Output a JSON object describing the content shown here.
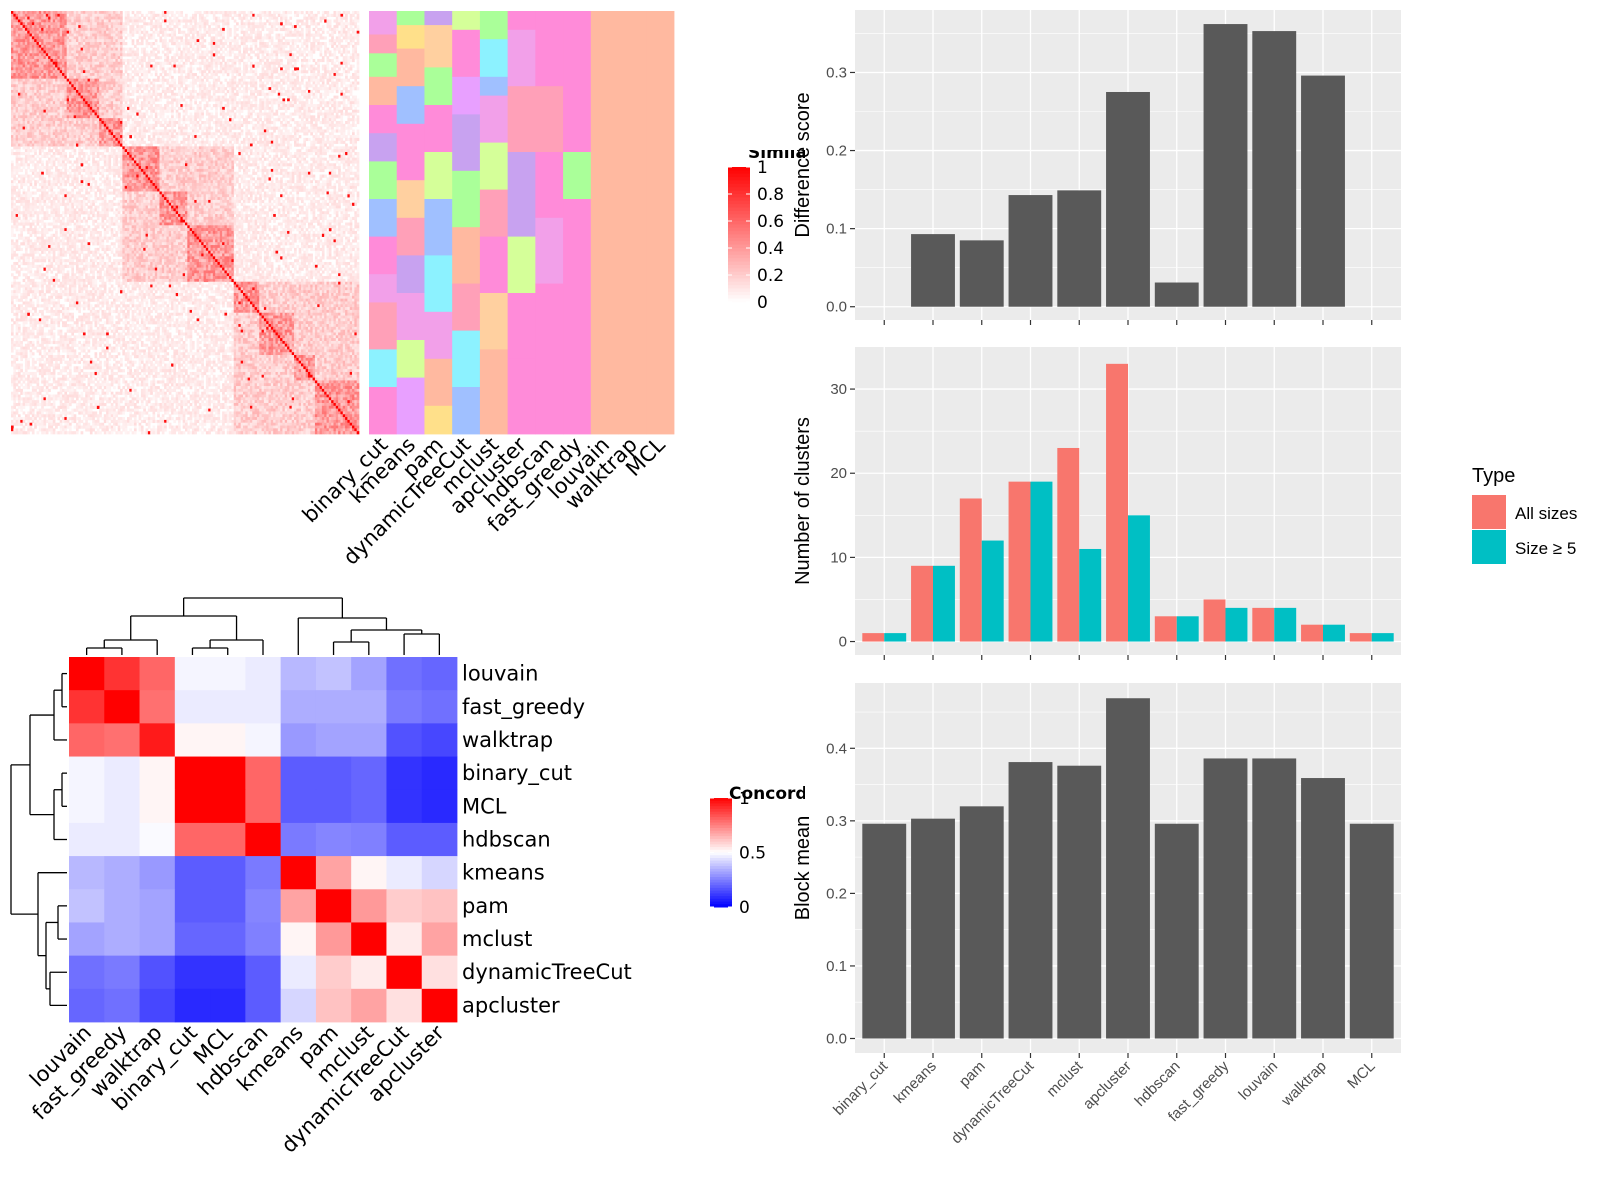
{
  "colors": {
    "bar": "#595959",
    "all_sizes": "#F8766D",
    "size_ge5": "#00BFC4",
    "panel_bg": "#EBEBEB",
    "grid": "#FFFFFF",
    "red": "#FF0000",
    "blue": "#0000FF",
    "white": "#FFFFFF"
  },
  "chart_data": [
    {
      "id": "similarity-heatmap",
      "type": "heatmap",
      "legend_title": "Similarity",
      "legend_ticks": [
        "0",
        "0.2",
        "0.4",
        "0.6",
        "0.8",
        "1"
      ],
      "n": 150
    },
    {
      "id": "cluster-assignments",
      "type": "heatmap",
      "columns": [
        "binary_cut",
        "kmeans",
        "pam",
        "dynamicTreeCut",
        "mclust",
        "apcluster",
        "hdbscan",
        "fast_greedy",
        "louvain",
        "walktrap",
        "MCL"
      ]
    },
    {
      "id": "concordance-heatmap",
      "type": "heatmap",
      "legend_title": "Concordance",
      "legend_ticks": [
        "0",
        "0.5",
        "1"
      ],
      "rows": [
        "louvain",
        "fast_greedy",
        "walktrap",
        "binary_cut",
        "MCL",
        "hdbscan",
        "kmeans",
        "pam",
        "mclust",
        "dynamicTreeCut",
        "apcluster"
      ],
      "columns": [
        "louvain",
        "fast_greedy",
        "walktrap",
        "binary_cut",
        "MCL",
        "hdbscan",
        "kmeans",
        "pam",
        "mclust",
        "dynamicTreeCut",
        "apcluster"
      ],
      "values": [
        [
          1.0,
          0.9,
          0.8,
          0.48,
          0.48,
          0.46,
          0.36,
          0.38,
          0.32,
          0.22,
          0.2
        ],
        [
          0.9,
          1.0,
          0.78,
          0.46,
          0.46,
          0.46,
          0.34,
          0.34,
          0.34,
          0.24,
          0.22
        ],
        [
          0.8,
          0.78,
          0.95,
          0.52,
          0.52,
          0.48,
          0.3,
          0.32,
          0.32,
          0.16,
          0.14
        ],
        [
          0.48,
          0.46,
          0.52,
          1.0,
          1.0,
          0.8,
          0.18,
          0.18,
          0.2,
          0.1,
          0.08
        ],
        [
          0.48,
          0.46,
          0.52,
          1.0,
          1.0,
          0.8,
          0.18,
          0.18,
          0.2,
          0.1,
          0.08
        ],
        [
          0.46,
          0.46,
          0.49,
          0.8,
          0.8,
          1.0,
          0.24,
          0.26,
          0.25,
          0.18,
          0.18
        ],
        [
          0.36,
          0.34,
          0.3,
          0.18,
          0.18,
          0.24,
          1.0,
          0.68,
          0.52,
          0.46,
          0.42
        ],
        [
          0.38,
          0.34,
          0.32,
          0.18,
          0.18,
          0.26,
          0.68,
          1.0,
          0.7,
          0.6,
          0.62
        ],
        [
          0.32,
          0.34,
          0.32,
          0.2,
          0.2,
          0.25,
          0.52,
          0.7,
          1.0,
          0.54,
          0.68
        ],
        [
          0.22,
          0.24,
          0.16,
          0.1,
          0.1,
          0.18,
          0.46,
          0.6,
          0.54,
          1.0,
          0.56
        ],
        [
          0.2,
          0.22,
          0.14,
          0.08,
          0.08,
          0.18,
          0.42,
          0.62,
          0.68,
          0.56,
          1.0
        ]
      ]
    },
    {
      "id": "difference-score",
      "type": "bar",
      "categories": [
        "binary_cut",
        "kmeans",
        "pam",
        "dynamicTreeCut",
        "mclust",
        "apcluster",
        "hdbscan",
        "fast_greedy",
        "louvain",
        "walktrap",
        "MCL"
      ],
      "values": [
        0,
        0.093,
        0.085,
        0.143,
        0.149,
        0.275,
        0.031,
        0.362,
        0.353,
        0.296,
        0
      ],
      "ylabel": "Difference score",
      "ylim": [
        -0.017,
        0.38
      ],
      "yticks": [
        "0.0",
        "0.1",
        "0.2",
        "0.3"
      ]
    },
    {
      "id": "number-of-clusters",
      "type": "bar",
      "categories": [
        "binary_cut",
        "kmeans",
        "pam",
        "dynamicTreeCut",
        "mclust",
        "apcluster",
        "hdbscan",
        "fast_greedy",
        "louvain",
        "walktrap",
        "MCL"
      ],
      "series": [
        {
          "name": "All sizes",
          "values": [
            1,
            9,
            17,
            19,
            23,
            33,
            3,
            5,
            4,
            2,
            1
          ]
        },
        {
          "name": "Size ≥ 5",
          "values": [
            1,
            9,
            12,
            19,
            11,
            15,
            3,
            4,
            4,
            2,
            1
          ]
        }
      ],
      "ylabel": "Number of clusters",
      "ylim": [
        -1.6,
        35
      ],
      "yticks": [
        "0",
        "10",
        "20",
        "30"
      ],
      "legend_title": "Type",
      "legend_entries": [
        "All sizes",
        "Size ≥ 5"
      ]
    },
    {
      "id": "block-mean",
      "type": "bar",
      "categories": [
        "binary_cut",
        "kmeans",
        "pam",
        "dynamicTreeCut",
        "mclust",
        "apcluster",
        "hdbscan",
        "fast_greedy",
        "louvain",
        "walktrap",
        "MCL"
      ],
      "values": [
        0.296,
        0.303,
        0.32,
        0.381,
        0.376,
        0.469,
        0.296,
        0.386,
        0.386,
        0.359,
        0.296
      ],
      "ylabel": "Block mean",
      "ylim": [
        -0.02,
        0.49
      ],
      "yticks": [
        "0.0",
        "0.1",
        "0.2",
        "0.3",
        "0.4"
      ]
    }
  ]
}
